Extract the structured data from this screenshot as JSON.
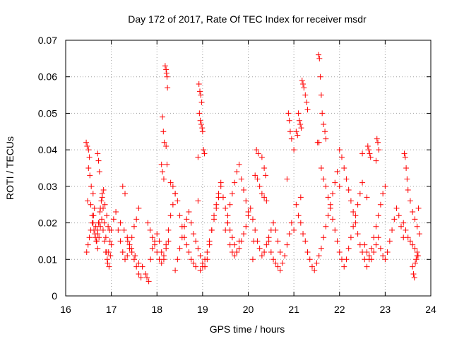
{
  "chart_data": {
    "type": "scatter",
    "title": "Day 172 of 2017, Rate Of TEC Index for receiver msdr",
    "xlabel": "GPS time / hours",
    "ylabel": "ROTI / TECUs",
    "xlim": [
      16,
      24
    ],
    "ylim": [
      0,
      0.07
    ],
    "xticks": [
      16,
      17,
      18,
      19,
      20,
      21,
      22,
      23,
      24
    ],
    "yticks": [
      0,
      0.01,
      0.02,
      0.03,
      0.04,
      0.05,
      0.06,
      0.07
    ],
    "xtick_labels": [
      "16",
      "17",
      "18",
      "19",
      "20",
      "21",
      "22",
      "23",
      "24"
    ],
    "ytick_labels": [
      "0",
      "0.01",
      "0.02",
      "0.03",
      "0.04",
      "0.05",
      "0.06",
      "0.07"
    ],
    "grid": true,
    "marker": "+",
    "color": "#ff0000",
    "series": [
      {
        "name": "ROTI",
        "x": [
          16.45,
          16.47,
          16.5,
          16.52,
          16.48,
          16.55,
          16.58,
          16.6,
          16.62,
          16.65,
          16.68,
          16.7,
          16.72,
          16.75,
          16.78,
          16.8,
          16.82,
          16.85,
          16.88,
          16.9,
          16.92,
          16.95,
          16.98,
          17.0,
          16.5,
          16.53,
          16.56,
          16.6,
          16.63,
          16.66,
          16.7,
          16.73,
          16.76,
          16.8,
          16.83,
          16.86,
          16.9,
          16.93,
          16.96,
          16.7,
          16.72,
          16.74,
          16.46,
          16.49,
          16.52,
          16.55,
          16.58,
          16.61,
          16.64,
          16.67,
          16.7,
          16.73,
          16.76,
          16.79,
          16.82,
          16.85,
          16.88,
          16.91,
          16.94,
          16.97,
          17.0,
          17.05,
          17.1,
          17.15,
          17.2,
          17.25,
          17.3,
          17.35,
          17.4,
          17.45,
          17.5,
          17.55,
          17.6,
          17.25,
          17.3,
          17.35,
          17.4,
          17.45,
          17.5,
          17.55,
          17.6,
          17.65,
          17.2,
          17.28,
          17.36,
          17.44,
          17.52,
          17.6,
          17.68,
          17.75,
          17.78,
          17.82,
          17.86,
          17.9,
          17.95,
          18.0,
          18.05,
          18.1,
          18.15,
          18.2,
          18.25,
          18.3,
          18.35,
          18.4,
          17.8,
          17.85,
          17.9,
          17.95,
          18.0,
          18.05,
          18.1,
          18.15,
          18.2,
          18.25,
          18.18,
          18.2,
          18.21,
          18.22,
          18.23,
          18.12,
          18.14,
          18.16,
          18.2,
          18.22,
          18.1,
          18.12,
          18.15,
          18.3,
          18.35,
          18.4,
          18.45,
          18.5,
          18.55,
          18.6,
          18.65,
          18.7,
          18.75,
          18.8,
          18.85,
          18.4,
          18.45,
          18.5,
          18.55,
          18.6,
          18.65,
          18.7,
          18.75,
          18.8,
          18.85,
          18.9,
          18.95,
          19.0,
          19.05,
          19.1,
          19.15,
          19.2,
          19.25,
          19.3,
          19.35,
          19.4,
          18.9,
          18.92,
          18.94,
          18.96,
          18.98,
          18.93,
          18.95,
          18.97,
          18.99,
          19.0,
          19.02,
          19.04,
          18.9,
          18.95,
          19.0,
          19.05,
          19.1,
          19.15,
          19.2,
          19.25,
          19.3,
          19.35,
          19.4,
          19.45,
          19.5,
          19.55,
          19.6,
          19.65,
          19.7,
          19.75,
          19.8,
          19.5,
          19.55,
          19.6,
          19.65,
          19.7,
          19.75,
          19.8,
          19.85,
          19.9,
          19.95,
          20.0,
          19.55,
          19.6,
          19.65,
          19.7,
          19.75,
          19.8,
          19.85,
          19.9,
          19.95,
          20.0,
          20.05,
          20.1,
          20.15,
          20.2,
          20.25,
          20.3,
          20.35,
          20.4,
          20.45,
          20.5,
          20.55,
          20.6,
          20.65,
          20.7,
          20.1,
          20.15,
          20.2,
          20.25,
          20.3,
          20.35,
          20.4,
          20.45,
          20.5,
          20.55,
          20.6,
          20.65,
          20.7,
          20.75,
          20.8,
          20.85,
          20.9,
          20.95,
          21.0,
          20.12,
          20.18,
          20.22,
          20.3,
          20.35,
          20.38,
          20.85,
          20.88,
          20.9,
          20.92,
          20.95,
          21.0,
          21.05,
          21.1,
          21.15,
          21.2,
          21.25,
          21.3,
          21.35,
          21.4,
          21.45,
          21.5,
          21.55,
          21.6,
          21.65,
          21.7,
          21.75,
          21.8,
          21.85,
          21.9,
          21.95,
          22.0,
          21.15,
          21.18,
          21.2,
          21.22,
          21.25,
          21.28,
          21.3,
          21.1,
          21.12,
          21.14,
          21.16,
          21.05,
          21.08,
          21.52,
          21.54,
          21.56,
          21.58,
          21.6,
          21.62,
          21.65,
          21.68,
          21.7,
          21.55,
          21.6,
          21.65,
          21.7,
          21.75,
          21.8,
          21.85,
          21.9,
          21.95,
          22.0,
          22.05,
          22.1,
          22.15,
          22.2,
          22.25,
          22.3,
          22.35,
          22.4,
          22.45,
          22.5,
          21.95,
          22.0,
          22.05,
          22.1,
          22.15,
          22.2,
          22.25,
          22.3,
          22.35,
          22.4,
          22.45,
          22.5,
          22.55,
          22.6,
          22.65,
          22.7,
          22.75,
          22.8,
          22.85,
          22.9,
          22.95,
          23.0,
          22.6,
          22.62,
          22.64,
          22.66,
          22.68,
          22.8,
          22.82,
          22.84,
          22.86,
          22.5,
          22.55,
          22.6,
          22.65,
          22.7,
          22.75,
          22.8,
          22.85,
          22.9,
          22.95,
          23.0,
          23.05,
          23.1,
          23.15,
          23.2,
          23.25,
          23.3,
          23.35,
          23.4,
          23.42,
          23.44,
          23.46,
          23.48,
          23.5,
          23.55,
          23.6,
          23.65,
          23.7,
          23.75,
          23.4,
          23.45,
          23.5,
          23.55,
          23.6,
          23.65,
          23.7,
          23.72,
          23.68,
          23.6,
          23.62,
          23.64,
          23.66,
          23.7,
          23.73
        ],
        "y": [
          0.042,
          0.041,
          0.04,
          0.038,
          0.026,
          0.025,
          0.022,
          0.02,
          0.018,
          0.016,
          0.015,
          0.018,
          0.02,
          0.023,
          0.026,
          0.028,
          0.024,
          0.02,
          0.016,
          0.012,
          0.009,
          0.008,
          0.011,
          0.014,
          0.035,
          0.033,
          0.03,
          0.028,
          0.024,
          0.019,
          0.017,
          0.02,
          0.024,
          0.027,
          0.029,
          0.025,
          0.022,
          0.019,
          0.018,
          0.039,
          0.037,
          0.034,
          0.012,
          0.014,
          0.016,
          0.018,
          0.02,
          0.022,
          0.017,
          0.015,
          0.013,
          0.016,
          0.019,
          0.021,
          0.018,
          0.015,
          0.012,
          0.01,
          0.012,
          0.015,
          0.018,
          0.021,
          0.023,
          0.018,
          0.015,
          0.012,
          0.01,
          0.011,
          0.013,
          0.016,
          0.019,
          0.021,
          0.024,
          0.03,
          0.028,
          0.016,
          0.014,
          0.012,
          0.01,
          0.008,
          0.006,
          0.005,
          0.02,
          0.018,
          0.015,
          0.013,
          0.011,
          0.009,
          0.008,
          0.006,
          0.005,
          0.004,
          0.01,
          0.013,
          0.015,
          0.017,
          0.015,
          0.012,
          0.01,
          0.014,
          0.018,
          0.022,
          0.025,
          0.028,
          0.02,
          0.018,
          0.016,
          0.014,
          0.012,
          0.01,
          0.009,
          0.011,
          0.013,
          0.015,
          0.063,
          0.062,
          0.061,
          0.06,
          0.057,
          0.049,
          0.045,
          0.042,
          0.041,
          0.036,
          0.036,
          0.034,
          0.032,
          0.031,
          0.03,
          0.028,
          0.026,
          0.022,
          0.019,
          0.016,
          0.014,
          0.012,
          0.01,
          0.009,
          0.008,
          0.007,
          0.01,
          0.013,
          0.016,
          0.019,
          0.021,
          0.023,
          0.02,
          0.017,
          0.015,
          0.013,
          0.011,
          0.009,
          0.008,
          0.01,
          0.014,
          0.018,
          0.021,
          0.024,
          0.027,
          0.03,
          0.026,
          0.058,
          0.056,
          0.055,
          0.053,
          0.05,
          0.048,
          0.047,
          0.046,
          0.045,
          0.04,
          0.039,
          0.038,
          0.007,
          0.008,
          0.01,
          0.012,
          0.015,
          0.018,
          0.022,
          0.025,
          0.028,
          0.031,
          0.027,
          0.024,
          0.02,
          0.018,
          0.016,
          0.014,
          0.012,
          0.015,
          0.018,
          0.022,
          0.025,
          0.028,
          0.031,
          0.034,
          0.036,
          0.032,
          0.029,
          0.026,
          0.023,
          0.02,
          0.014,
          0.012,
          0.011,
          0.012,
          0.013,
          0.015,
          0.017,
          0.019,
          0.022,
          0.024,
          0.021,
          0.018,
          0.015,
          0.013,
          0.011,
          0.012,
          0.014,
          0.016,
          0.018,
          0.02,
          0.018,
          0.015,
          0.012,
          0.01,
          0.033,
          0.032,
          0.03,
          0.028,
          0.027,
          0.026,
          0.015,
          0.012,
          0.01,
          0.009,
          0.008,
          0.007,
          0.009,
          0.011,
          0.014,
          0.017,
          0.02,
          0.018,
          0.015,
          0.04,
          0.039,
          0.038,
          0.035,
          0.033,
          0.032,
          0.05,
          0.048,
          0.045,
          0.043,
          0.04,
          0.025,
          0.022,
          0.02,
          0.017,
          0.015,
          0.012,
          0.01,
          0.008,
          0.007,
          0.009,
          0.011,
          0.013,
          0.016,
          0.019,
          0.022,
          0.025,
          0.028,
          0.031,
          0.034,
          0.03,
          0.027,
          0.059,
          0.058,
          0.057,
          0.055,
          0.053,
          0.051,
          0.05,
          0.048,
          0.047,
          0.046,
          0.045,
          0.044,
          0.042,
          0.066,
          0.065,
          0.06,
          0.055,
          0.05,
          0.047,
          0.045,
          0.043,
          0.042,
          0.035,
          0.032,
          0.03,
          0.027,
          0.024,
          0.021,
          0.018,
          0.015,
          0.012,
          0.01,
          0.008,
          0.01,
          0.013,
          0.016,
          0.019,
          0.022,
          0.025,
          0.028,
          0.031,
          0.034,
          0.04,
          0.038,
          0.035,
          0.032,
          0.029,
          0.026,
          0.023,
          0.02,
          0.017,
          0.014,
          0.012,
          0.01,
          0.008,
          0.01,
          0.013,
          0.016,
          0.019,
          0.022,
          0.025,
          0.028,
          0.03,
          0.027,
          0.041,
          0.04,
          0.039,
          0.038,
          0.037,
          0.043,
          0.042,
          0.04,
          0.039,
          0.014,
          0.012,
          0.011,
          0.01,
          0.012,
          0.014,
          0.016,
          0.013,
          0.011,
          0.01,
          0.012,
          0.015,
          0.018,
          0.021,
          0.024,
          0.022,
          0.019,
          0.016,
          0.039,
          0.038,
          0.035,
          0.032,
          0.029,
          0.026,
          0.023,
          0.021,
          0.019,
          0.017,
          0.02,
          0.018,
          0.016,
          0.015,
          0.014,
          0.013,
          0.012,
          0.011,
          0.01,
          0.008,
          0.006,
          0.005,
          0.009,
          0.011,
          0.024
        ]
      }
    ]
  }
}
